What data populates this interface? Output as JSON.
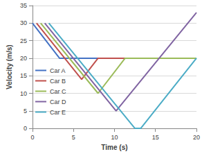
{
  "chart_data": {
    "type": "line",
    "x_label": "Time (s)",
    "y_label": "Velocity (m/s)",
    "xlim": [
      0,
      20
    ],
    "xticks": [
      0,
      5,
      10,
      15,
      20
    ],
    "ylim": [
      0,
      35
    ],
    "yticks": [
      0,
      5,
      10,
      15,
      20,
      25,
      30,
      35
    ],
    "grid": true,
    "legend": "left",
    "series": [
      {
        "name": "Car A",
        "color": "#4472c4",
        "x": [
          0,
          3.3,
          20
        ],
        "values": [
          30,
          20,
          20
        ]
      },
      {
        "name": "Car B",
        "color": "#c0504d",
        "x": [
          0.5,
          6,
          8,
          11.5
        ],
        "values": [
          30,
          14,
          20,
          20
        ]
      },
      {
        "name": "Car C",
        "color": "#9bbb59",
        "x": [
          1,
          8,
          11.3,
          20
        ],
        "values": [
          30,
          10,
          20,
          20
        ]
      },
      {
        "name": "Car D",
        "color": "#8064a2",
        "x": [
          1.5,
          10.2,
          20
        ],
        "values": [
          30,
          5,
          33
        ]
      },
      {
        "name": "Car E",
        "color": "#4bacc6",
        "x": [
          2,
          12.5,
          13.2,
          20
        ],
        "values": [
          30,
          0,
          0,
          20
        ]
      }
    ]
  }
}
